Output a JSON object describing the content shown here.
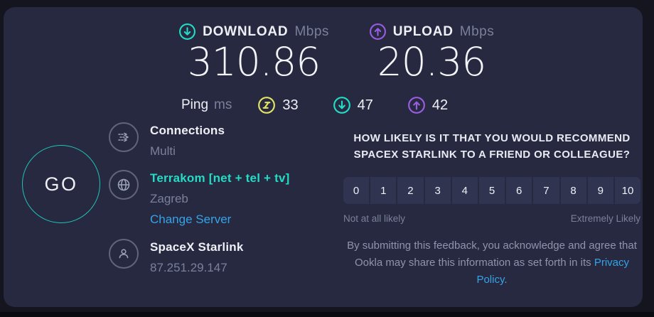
{
  "colors": {
    "card": "#262940",
    "outer": "#14151f",
    "teal": "#24dcc4",
    "purple": "#9b5de0",
    "yellow": "#e3e465",
    "blue": "#36a3e8",
    "go_border": "#21c3b6"
  },
  "results": {
    "download": {
      "label": "DOWNLOAD",
      "unit": "Mbps",
      "value": "310.86"
    },
    "upload": {
      "label": "UPLOAD",
      "unit": "Mbps",
      "value": "20.36"
    },
    "ping": {
      "label": "Ping",
      "unit": "ms",
      "idle": "33",
      "download": "47",
      "upload": "42"
    }
  },
  "go_button": {
    "label": "GO"
  },
  "connection_info": {
    "connections": {
      "label": "Connections",
      "value": "Multi"
    },
    "server": {
      "name": "Terrakom [net + tel + tv]",
      "location": "Zagreb",
      "change_link": "Change Server"
    },
    "isp": {
      "name": "SpaceX Starlink",
      "ip": "87.251.29.147"
    }
  },
  "feedback": {
    "question": "HOW LIKELY IS IT THAT YOU WOULD RECOMMEND SPACEX STARLINK TO A FRIEND OR COLLEAGUE?",
    "scale": [
      "0",
      "1",
      "2",
      "3",
      "4",
      "5",
      "6",
      "7",
      "8",
      "9",
      "10"
    ],
    "min_label": "Not at all likely",
    "max_label": "Extremely Likely",
    "disclaimer_before": "By submitting this feedback, you acknowledge and agree that Ookla may share this information as set forth in its ",
    "privacy_link": "Privacy Policy",
    "disclaimer_after": "."
  }
}
